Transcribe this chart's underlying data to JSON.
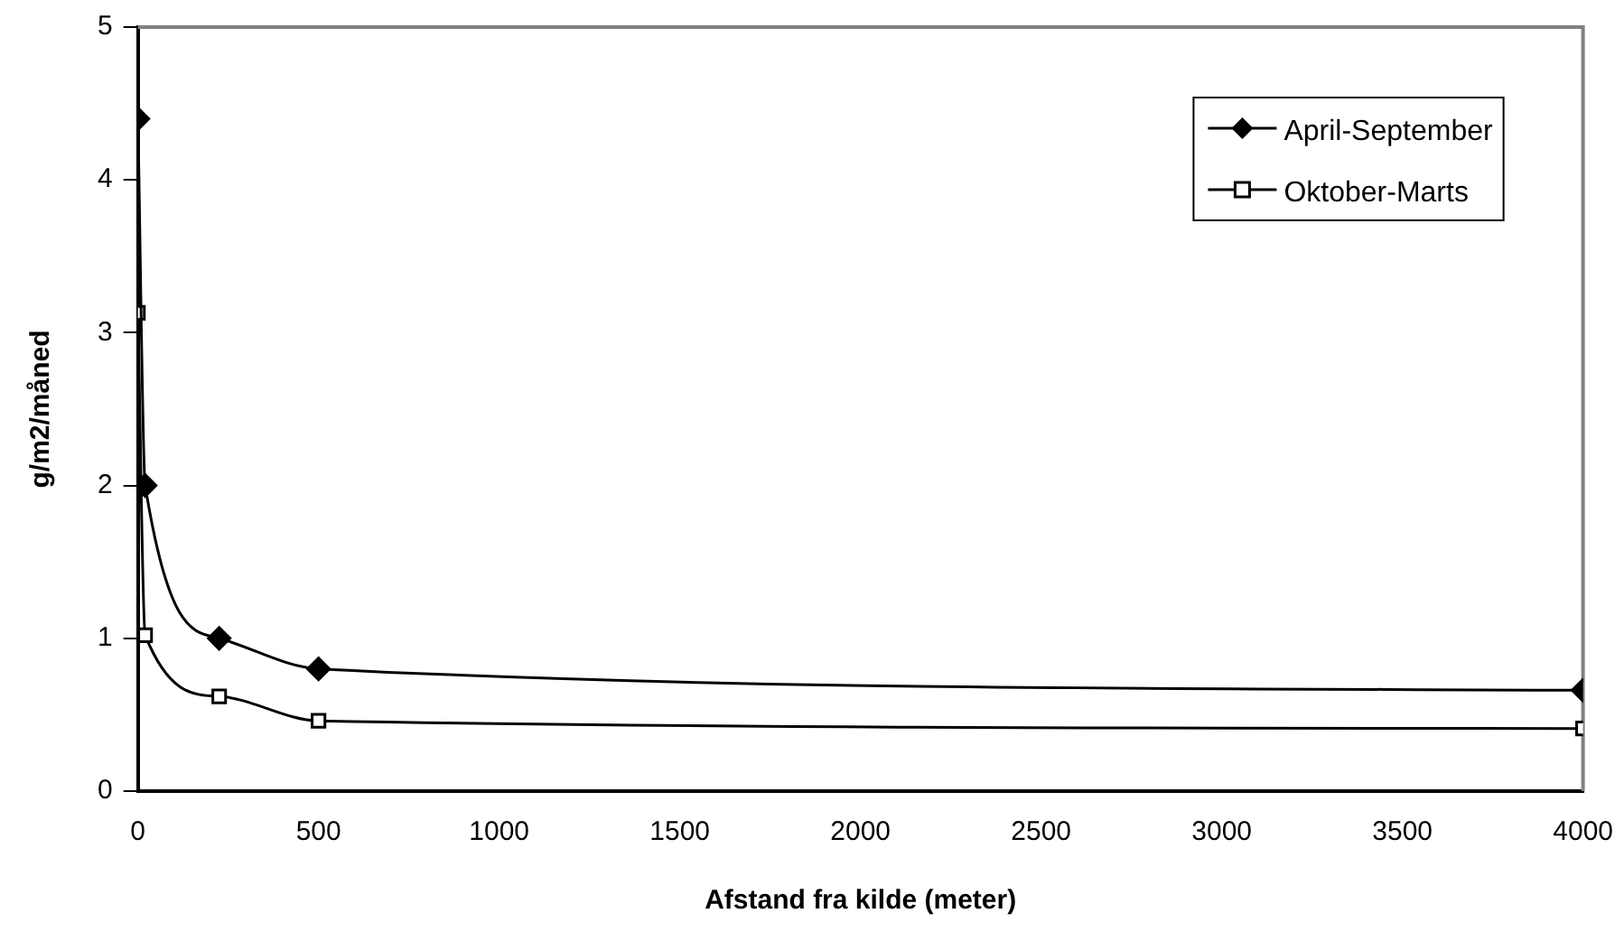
{
  "chart_data": {
    "type": "line",
    "xlabel": "Afstand fra kilde (meter)",
    "ylabel": "g/m2/måned",
    "x": [
      0,
      20,
      225,
      500,
      4000
    ],
    "series": [
      {
        "name": "April-September",
        "color": "#000000",
        "marker": "diamond",
        "values": [
          4.4,
          2.0,
          1.0,
          0.8,
          0.66
        ]
      },
      {
        "name": "Oktober-Marts",
        "color": "#000000",
        "marker": "square",
        "values": [
          3.13,
          1.02,
          0.62,
          0.46,
          0.41
        ]
      }
    ],
    "xlim": [
      0,
      4000
    ],
    "xticks": [
      0,
      500,
      1000,
      1500,
      2000,
      2500,
      3000,
      3500,
      4000
    ],
    "ylim": [
      0,
      5
    ],
    "yticks": [
      0,
      1,
      2,
      3,
      4,
      5
    ],
    "grid": false,
    "legend": "top right"
  }
}
